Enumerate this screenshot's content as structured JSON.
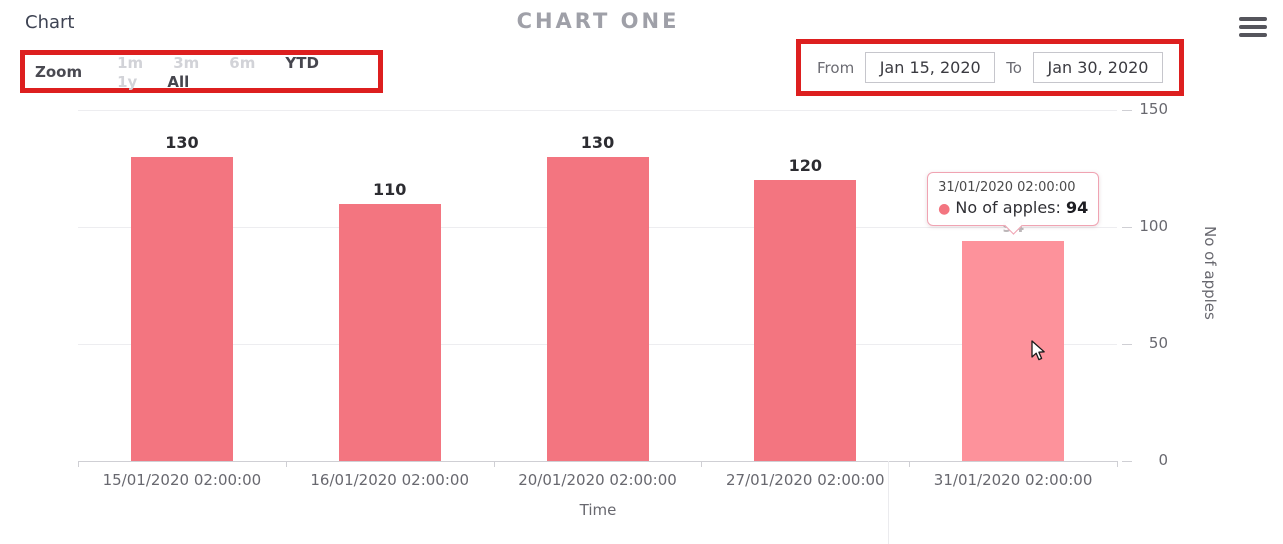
{
  "header": {
    "page_title": "Chart",
    "chart_title": "CHART ONE"
  },
  "range_selector": {
    "zoom_label": "Zoom",
    "zoom_buttons": [
      {
        "label": "1m",
        "enabled": false
      },
      {
        "label": "3m",
        "enabled": false
      },
      {
        "label": "6m",
        "enabled": false
      },
      {
        "label": "YTD",
        "enabled": true
      },
      {
        "label": "1y",
        "enabled": false
      },
      {
        "label": "All",
        "enabled": true
      }
    ],
    "from_label": "From",
    "from_value": "Jan 15, 2020",
    "to_label": "To",
    "to_value": "Jan 30, 2020"
  },
  "chart_data": {
    "type": "bar",
    "title": "CHART ONE",
    "categories": [
      "15/01/2020 02:00:00",
      "16/01/2020 02:00:00",
      "20/01/2020 02:00:00",
      "27/01/2020 02:00:00",
      "31/01/2020 02:00:00"
    ],
    "series": [
      {
        "name": "No of apples",
        "values": [
          130,
          110,
          130,
          120,
          94
        ]
      }
    ],
    "data_labels": [
      "130",
      "110",
      "130",
      "120",
      "94"
    ],
    "xlabel": "Time",
    "ylabel": "No of apples",
    "ylim": [
      0,
      150
    ],
    "yticks": [
      0,
      50,
      100,
      150
    ],
    "grid": true,
    "legend_position": "none",
    "hovered_index": 4
  },
  "tooltip": {
    "date": "31/01/2020 02:00:00",
    "dot_icon": "series-marker-dot",
    "label": "No of apples:",
    "value": "94"
  },
  "icons": {
    "menu": "hamburger-menu",
    "cursor": "mouse-pointer"
  },
  "colors": {
    "bar": "#f37580",
    "bar_hover": "#fd929b",
    "accent_red": "#dd1f1f",
    "grid": "#ededf0",
    "axis": "#cfcfd4",
    "text_muted": "#68686f"
  }
}
